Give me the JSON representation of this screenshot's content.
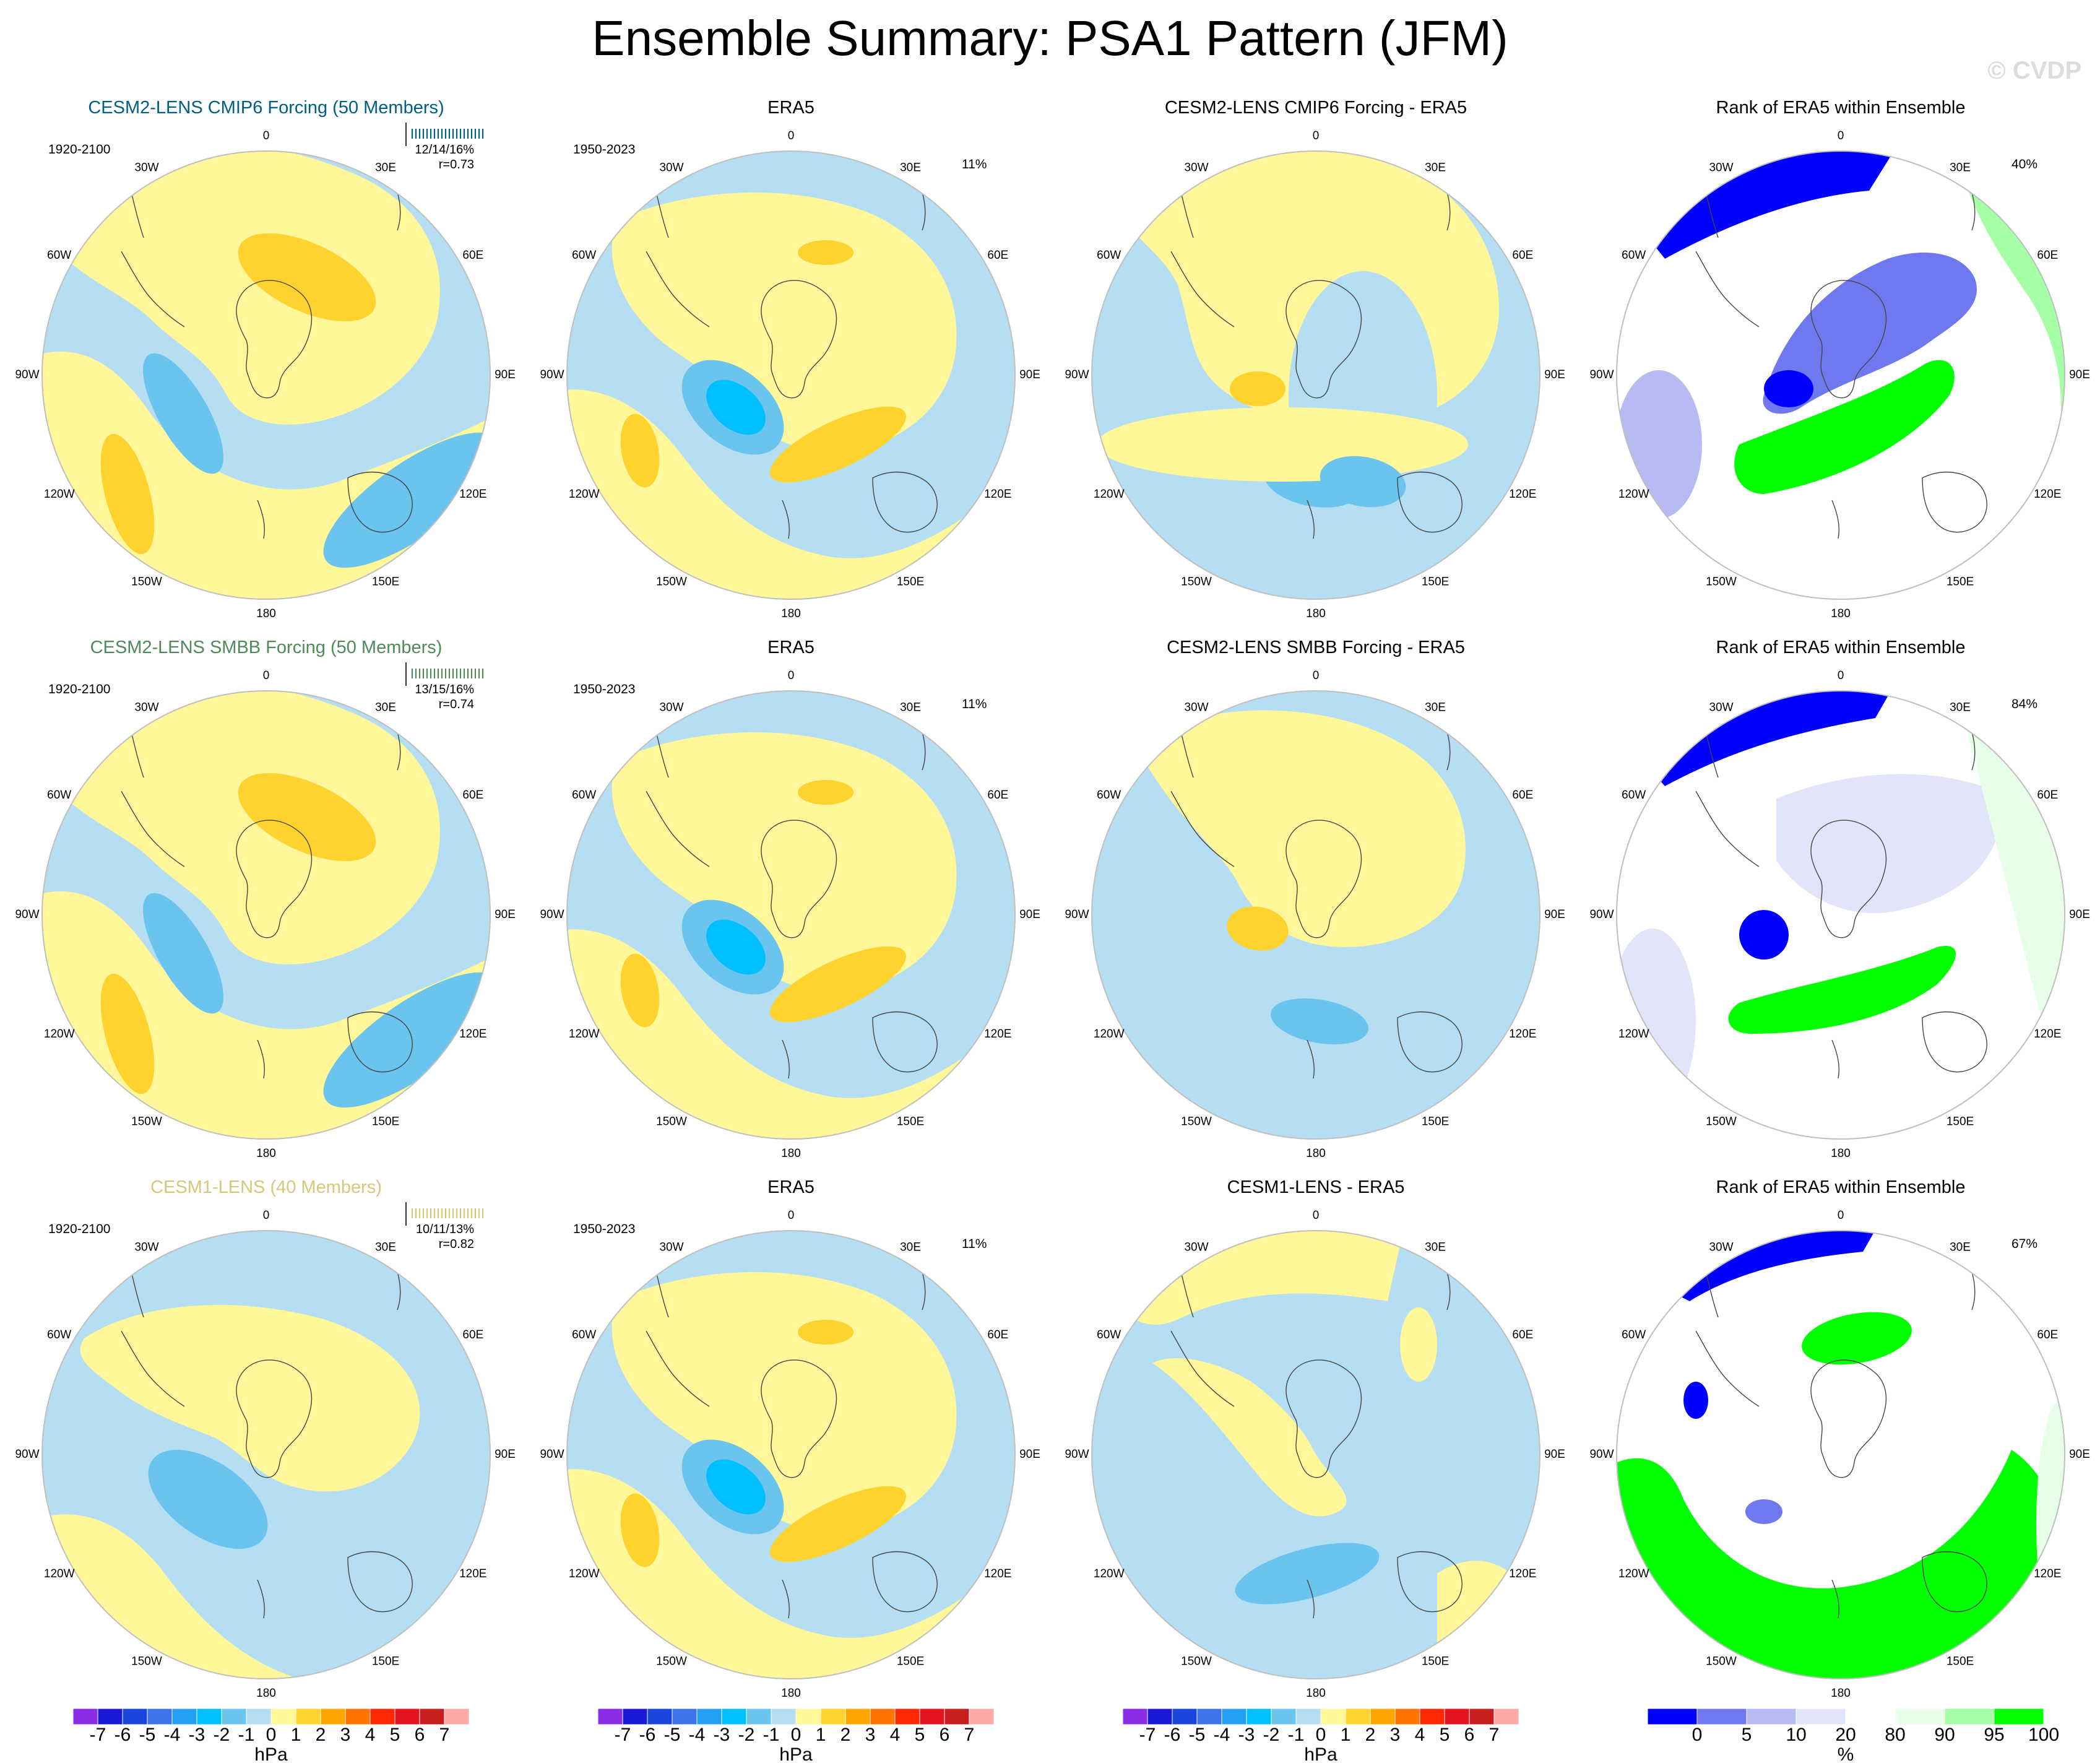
{
  "figure": {
    "title": "Ensemble Summary: PSA1 Pattern (JFM)",
    "watermark": "© CVDP"
  },
  "colors": {
    "yellow": "#fff799",
    "light_blue": "#b5def3",
    "orange_yellow": "#ffd22d",
    "mid_blue": "#6ac4ee",
    "blue2": "#00bfff",
    "rank_blue": "#0000ff",
    "rank_mid_blue": "#6f78ee",
    "rank_light_blue": "#b7bbf4",
    "rank_pale_blue": "#e2e4fa",
    "rank_pale_green": "#e6ffe6",
    "rank_light_green": "#a5ffa5",
    "rank_green": "#00ff00",
    "title_cmip6": "#005f84",
    "title_smbb": "#4e8a5a",
    "title_cesm1": "#d8c67b"
  },
  "longitude_labels": [
    "0",
    "30E",
    "60E",
    "90E",
    "120E",
    "150E",
    "180",
    "150W",
    "120W",
    "90W",
    "60W",
    "30W"
  ],
  "colorbars": {
    "hpa": {
      "labels": [
        "-7",
        "-6",
        "-5",
        "-4",
        "-3",
        "-2",
        "-1",
        "0",
        "1",
        "2",
        "3",
        "4",
        "5",
        "6",
        "7"
      ],
      "colors": [
        "#8c2ee6",
        "#1b19d6",
        "#1a46dd",
        "#3f73ea",
        "#239ff3",
        "#00bfff",
        "#6ac4ee",
        "#b5def3",
        "#fff799",
        "#ffd22d",
        "#ffa500",
        "#ff7300",
        "#ff2800",
        "#e6141e",
        "#c81e1e",
        "#ffa8a8"
      ],
      "unit": "hPa"
    },
    "rank": {
      "labels": [
        "0",
        "5",
        "10",
        "20",
        "80",
        "90",
        "95",
        "100"
      ],
      "colors": [
        "#0000ff",
        "#6f78ee",
        "#b7bbf4",
        "#e2e4fa",
        "#ffffff",
        "#e6ffe6",
        "#a5ffa5",
        "#00ff00"
      ],
      "unit": "%"
    }
  },
  "chart_data": [
    {
      "type": "heatmap",
      "title": "CESM2-LENS CMIP6 Forcing (50 Members)",
      "period": "1920-2100",
      "stats": "12/14/16%",
      "corr": "r=0.73",
      "colorbar": "hpa"
    },
    {
      "type": "heatmap",
      "title": "ERA5",
      "period": "1950-2023",
      "pct": "11%",
      "colorbar": "hpa"
    },
    {
      "type": "heatmap",
      "title": "CESM2-LENS CMIP6 Forcing - ERA5",
      "colorbar": "hpa"
    },
    {
      "type": "heatmap",
      "title": "Rank of ERA5 within Ensemble",
      "pct": "40%",
      "colorbar": "rank"
    },
    {
      "type": "heatmap",
      "title": "CESM2-LENS SMBB Forcing (50 Members)",
      "period": "1920-2100",
      "stats": "13/15/16%",
      "corr": "r=0.74",
      "colorbar": "hpa"
    },
    {
      "type": "heatmap",
      "title": "ERA5",
      "period": "1950-2023",
      "pct": "11%",
      "colorbar": "hpa"
    },
    {
      "type": "heatmap",
      "title": "CESM2-LENS SMBB Forcing - ERA5",
      "colorbar": "hpa"
    },
    {
      "type": "heatmap",
      "title": "Rank of ERA5 within Ensemble",
      "pct": "84%",
      "colorbar": "rank"
    },
    {
      "type": "heatmap",
      "title": "CESM1-LENS (40 Members)",
      "period": "1920-2100",
      "stats": "10/11/13%",
      "corr": "r=0.82",
      "colorbar": "hpa"
    },
    {
      "type": "heatmap",
      "title": "ERA5",
      "period": "1950-2023",
      "pct": "11%",
      "colorbar": "hpa"
    },
    {
      "type": "heatmap",
      "title": "CESM1-LENS - ERA5",
      "colorbar": "hpa"
    },
    {
      "type": "heatmap",
      "title": "Rank of ERA5 within Ensemble",
      "pct": "67%",
      "colorbar": "rank"
    }
  ]
}
